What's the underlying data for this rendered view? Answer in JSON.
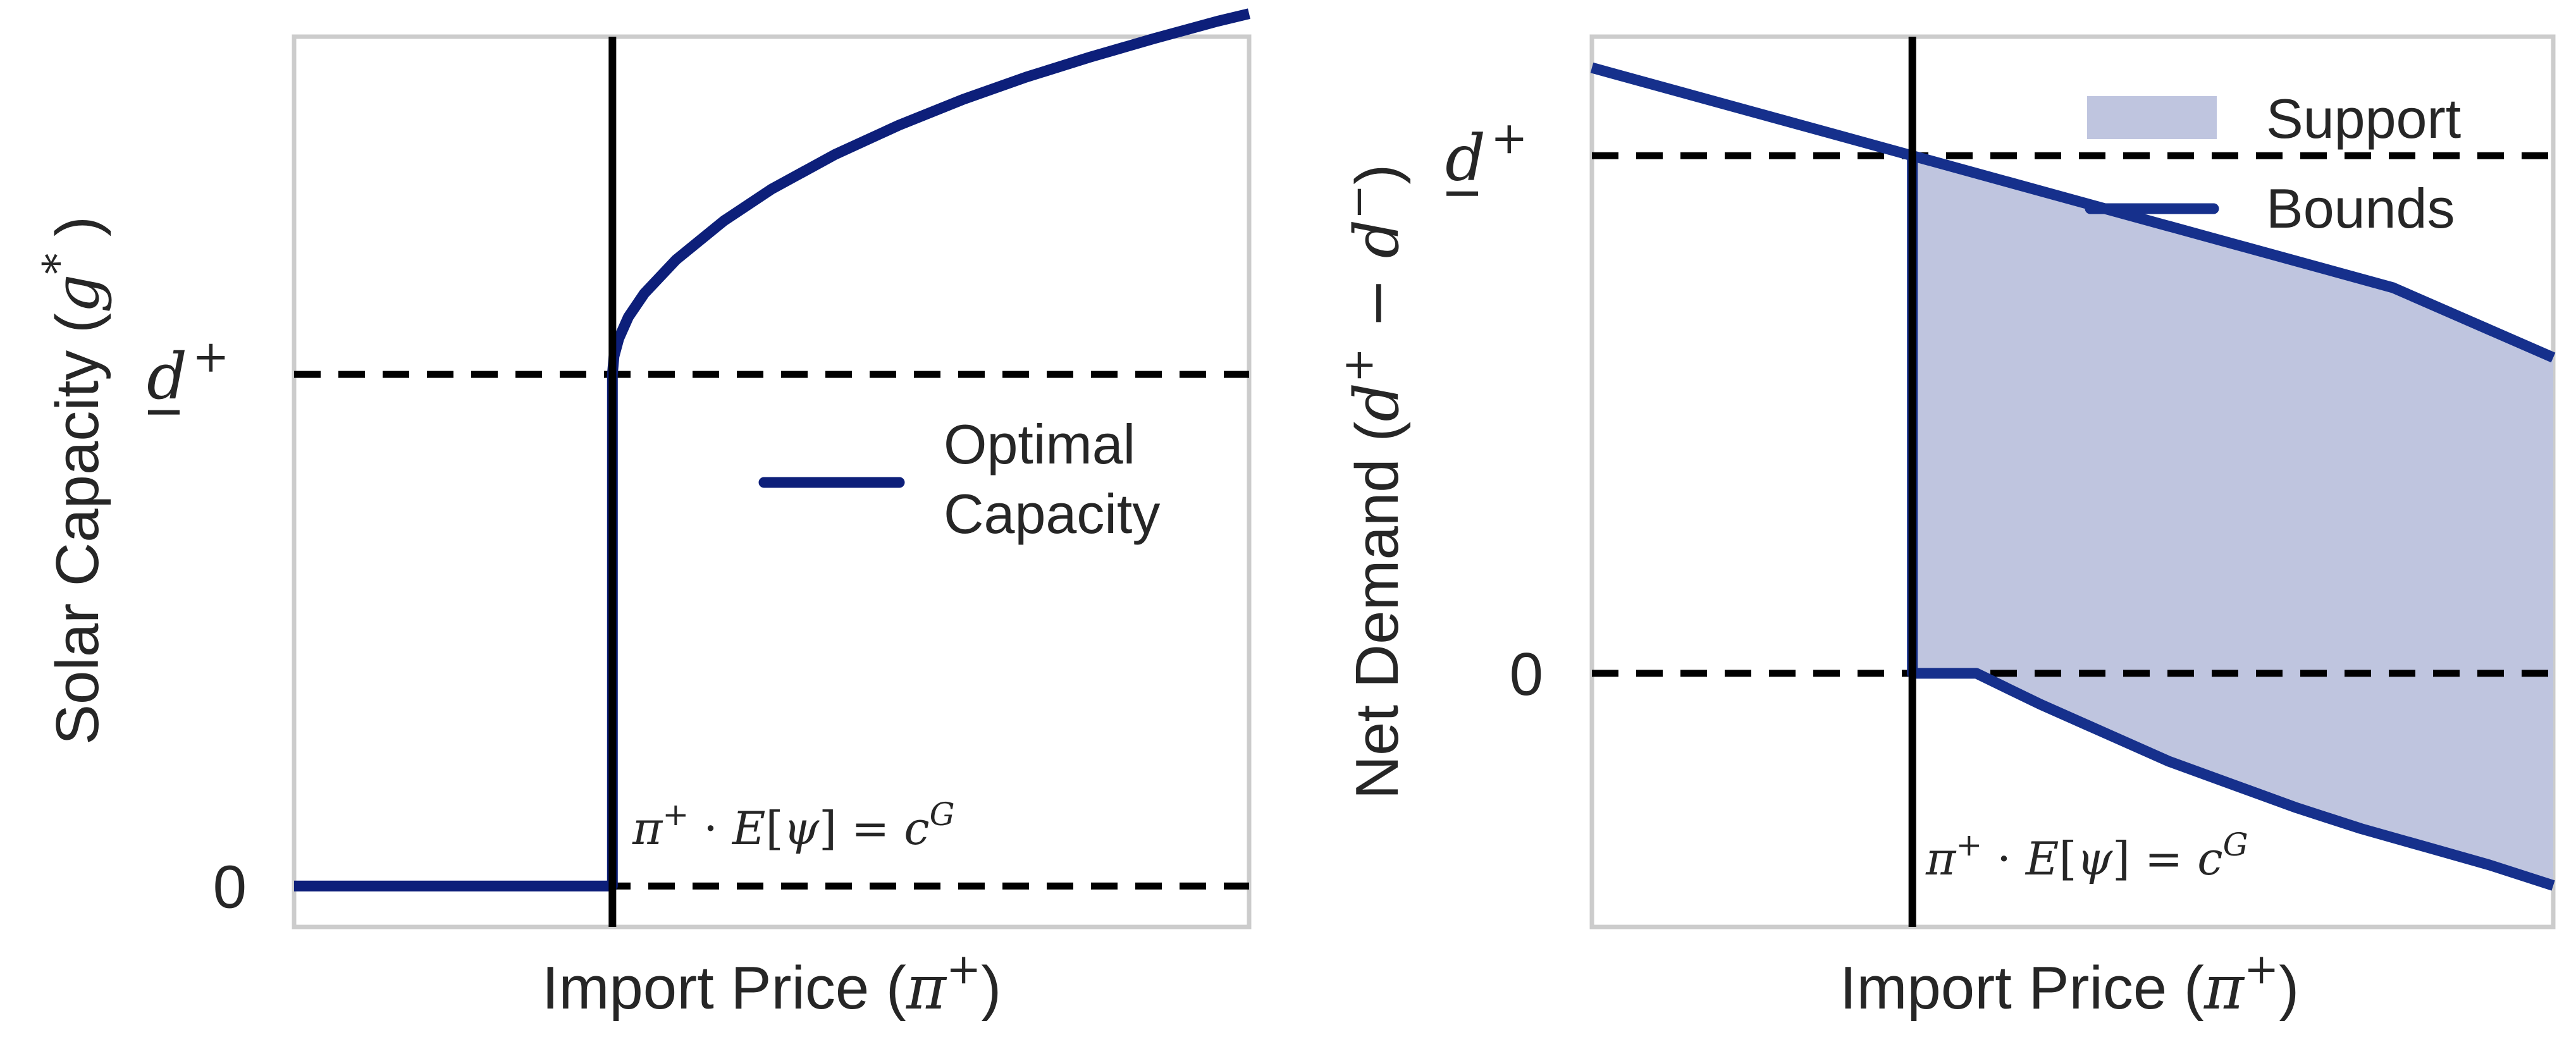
{
  "chart_data": [
    {
      "type": "line",
      "title": "",
      "xlabel": "Import Price (π⁺)",
      "ylabel": "Solar Capacity (g*)",
      "xticks": [],
      "yticks": [
        {
          "value": 0,
          "label": "0"
        },
        {
          "value": 1,
          "label": "d̲⁺"
        }
      ],
      "xlim": [
        0,
        3
      ],
      "ylim": [
        -0.08,
        1.66
      ],
      "grid": false,
      "legend": {
        "placement": "center-right",
        "entries": [
          "Optimal",
          "Capacity"
        ]
      },
      "annotation": "π⁺ · E[ψ] = c^G",
      "threshold_x": 1,
      "reference_lines": [
        0,
        1
      ],
      "series": [
        {
          "name": "Optimal Capacity",
          "color": "#0d1f7a",
          "x": [
            0,
            1.0,
            1.0,
            1.005,
            1.02,
            1.05,
            1.1,
            1.2,
            1.35,
            1.5,
            1.7,
            1.9,
            2.1,
            2.3,
            2.5,
            2.7,
            2.9,
            3.0
          ],
          "y": [
            0,
            0,
            1.0,
            1.035,
            1.07,
            1.112,
            1.158,
            1.224,
            1.3,
            1.362,
            1.43,
            1.487,
            1.537,
            1.581,
            1.62,
            1.656,
            1.69,
            1.705
          ]
        }
      ]
    },
    {
      "type": "area",
      "title": "",
      "xlabel": "Import Price (π⁺)",
      "ylabel": "Net Demand (d⁺ − d⁻)",
      "xticks": [],
      "yticks": [
        {
          "value": 0,
          "label": "0"
        },
        {
          "value": 1,
          "label": "d̲⁺"
        }
      ],
      "xlim": [
        0,
        3
      ],
      "ylim": [
        -0.49,
        1.23
      ],
      "grid": false,
      "legend": {
        "placement": "top-right",
        "entries": [
          "Support",
          "Bounds"
        ]
      },
      "annotation": "π⁺ · E[ψ] = c^G",
      "threshold_x": 1,
      "reference_lines": [
        0,
        1
      ],
      "colors": {
        "support_fill": "#bfc5df",
        "bounds": "#16308c"
      },
      "upper_bound": {
        "x": [
          0,
          0.5,
          1.0,
          1.5,
          2.0,
          2.5,
          3.0
        ],
        "y": [
          1.17,
          1.085,
          1.0,
          0.915,
          0.83,
          0.745,
          0.61
        ]
      },
      "lower_bound": {
        "x": [
          1.0,
          1.2,
          1.4,
          1.6,
          1.8,
          2.0,
          2.2,
          2.4,
          2.6,
          2.8,
          3.0
        ],
        "y": [
          0,
          0,
          -0.06,
          -0.115,
          -0.17,
          -0.215,
          -0.26,
          -0.3,
          -0.335,
          -0.37,
          -0.41
        ]
      }
    }
  ]
}
